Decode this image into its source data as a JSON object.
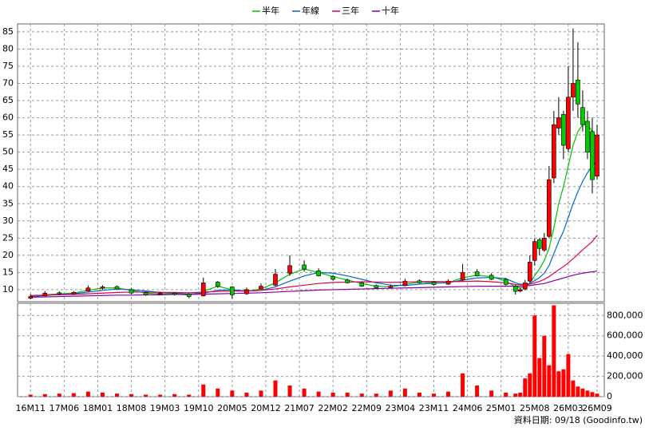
{
  "chart_data": {
    "type": "candlestick",
    "footer": "資料日期: 09/18 (Goodinfo.tw)",
    "x": [
      0,
      3,
      6,
      9,
      12,
      15,
      18,
      21,
      24,
      27,
      30,
      33,
      36,
      39,
      42,
      45,
      48,
      51,
      54,
      57,
      60,
      63,
      66,
      69,
      72,
      75,
      78,
      81,
      84,
      87,
      90,
      93,
      96,
      99,
      101,
      102,
      103,
      104,
      105,
      106,
      107,
      108,
      109,
      110,
      111,
      112,
      113,
      114,
      115,
      116,
      117,
      118
    ],
    "xlim": [
      -2.7,
      119.5
    ],
    "xticks": [
      {
        "value": 0,
        "label": "16M11"
      },
      {
        "value": 7,
        "label": "17M06"
      },
      {
        "value": 14,
        "label": "18M01"
      },
      {
        "value": 21,
        "label": "18M08"
      },
      {
        "value": 28,
        "label": "19M03"
      },
      {
        "value": 35,
        "label": "19M10"
      },
      {
        "value": 42,
        "label": "20M05"
      },
      {
        "value": 49,
        "label": "20M12"
      },
      {
        "value": 56,
        "label": "21M07"
      },
      {
        "value": 63,
        "label": "22M02"
      },
      {
        "value": 70,
        "label": "22M09"
      },
      {
        "value": 77,
        "label": "23M04"
      },
      {
        "value": 84,
        "label": "23M11"
      },
      {
        "value": 91,
        "label": "24M06"
      },
      {
        "value": 98,
        "label": "25M01"
      },
      {
        "value": 105,
        "label": "25M08"
      },
      {
        "value": 112,
        "label": "26M03"
      },
      {
        "value": 118,
        "label": "26M09"
      }
    ],
    "ylim": [
      6.5,
      87.3
    ],
    "yticks": [
      10,
      15,
      20,
      25,
      30,
      35,
      40,
      45,
      50,
      55,
      60,
      65,
      70,
      75,
      80,
      85
    ],
    "open": [
      7.5,
      8.2,
      9.1,
      8.7,
      9.6,
      10.4,
      10.9,
      10.0,
      9.1,
      8.6,
      9.0,
      8.7,
      8.2,
      12.2,
      10.8,
      8.8,
      10.2,
      11.3,
      14.8,
      17.2,
      15.5,
      13.8,
      12.8,
      12.0,
      11.2,
      10.6,
      11.2,
      12.6,
      12.2,
      11.6,
      12.8,
      15.2,
      14.2,
      13.0,
      11.0,
      9.6,
      10.2,
      12.5,
      18.5,
      24.5,
      21.5,
      25.5,
      42.5,
      57,
      61,
      51,
      66,
      71,
      63,
      59,
      56,
      43
    ],
    "high": [
      8.6,
      9.6,
      9.5,
      9.6,
      11.2,
      11.3,
      11.2,
      10.4,
      9.4,
      9.4,
      9.3,
      9.0,
      13.5,
      12.5,
      11.0,
      10.6,
      11.8,
      16.0,
      20.0,
      18.5,
      16.2,
      14.2,
      13.2,
      12.3,
      11.5,
      11.5,
      13.2,
      13.0,
      12.4,
      13.0,
      17.5,
      16.0,
      14.8,
      13.4,
      11.5,
      10.5,
      12.8,
      20.0,
      25.0,
      25.0,
      26.5,
      46.0,
      62.0,
      66.0,
      62.0,
      75.0,
      86.0,
      82.0,
      68.0,
      62.0,
      60.0,
      58.0
    ],
    "low": [
      7.2,
      8.0,
      8.5,
      8.5,
      9.4,
      10.0,
      9.9,
      8.7,
      8.2,
      8.4,
      8.3,
      7.5,
      8.0,
      10.5,
      7.4,
      8.5,
      10.0,
      11.0,
      14.0,
      15.2,
      13.8,
      12.6,
      11.8,
      10.8,
      10.3,
      10.4,
      11.0,
      11.8,
      11.2,
      11.4,
      12.5,
      13.8,
      12.8,
      11.2,
      8.6,
      9.2,
      9.8,
      12.0,
      17.0,
      20.0,
      21.0,
      25.0,
      41.0,
      55.0,
      48.0,
      50.0,
      62.0,
      60.0,
      56.0,
      48.0,
      38.0,
      42.0
    ],
    "close": [
      8.0,
      9.0,
      8.8,
      9.2,
      10.5,
      10.8,
      10.2,
      9.0,
      8.5,
      9.0,
      8.6,
      8.0,
      12.0,
      11.0,
      8.5,
      10.0,
      11.0,
      14.5,
      17.0,
      16.0,
      14.0,
      13.0,
      12.0,
      11.0,
      10.5,
      11.0,
      12.5,
      12.0,
      11.5,
      12.5,
      15.0,
      14.0,
      13.0,
      11.5,
      9.5,
      10,
      12,
      18,
      24,
      22,
      25,
      42,
      58,
      60,
      52,
      66,
      70,
      64,
      58,
      50,
      42,
      55
    ],
    "up_color": "#ff0000",
    "down_color": "#00cc00",
    "series": [
      {
        "name": "半年",
        "color": "#00c000",
        "values": [
          8.0,
          8.5,
          8.8,
          9.0,
          9.8,
          10.5,
          10.5,
          9.8,
          9.0,
          8.8,
          8.8,
          8.4,
          9.5,
          11.0,
          10.0,
          9.5,
          10.2,
          12.0,
          14.5,
          16.0,
          15.0,
          13.8,
          12.8,
          11.8,
          11.0,
          10.8,
          11.5,
          12.2,
          12.0,
          12.0,
          13.5,
          14.2,
          13.8,
          12.5,
          10.8,
          10.5,
          10.8,
          12.0,
          14.0,
          16.0,
          18.5,
          22.0,
          28.0,
          35.0,
          40.0,
          46.0,
          52.0,
          56.0,
          58.0,
          58.0,
          56.0,
          54.0
        ]
      },
      {
        "name": "年線",
        "color": "#0066cc",
        "values": [
          8.0,
          8.3,
          8.6,
          8.8,
          9.3,
          9.8,
          10.2,
          10.0,
          9.6,
          9.2,
          9.0,
          8.7,
          9.0,
          9.8,
          10.0,
          9.6,
          9.8,
          10.8,
          12.5,
          14.0,
          15.0,
          14.8,
          14.0,
          13.0,
          12.0,
          11.3,
          11.2,
          11.6,
          11.9,
          12.0,
          12.8,
          13.4,
          13.6,
          13.2,
          12.0,
          11.6,
          11.5,
          11.8,
          12.6,
          13.5,
          14.8,
          17.0,
          20.5,
          24.0,
          27.0,
          31.0,
          35.0,
          38.5,
          41.5,
          44.0,
          46.0,
          47.5
        ]
      },
      {
        "name": "三年",
        "color": "#dd0055",
        "values": [
          8.3,
          8.4,
          8.5,
          8.6,
          8.8,
          9.0,
          9.2,
          9.3,
          9.3,
          9.2,
          9.2,
          9.1,
          9.3,
          9.5,
          9.6,
          9.6,
          9.8,
          10.2,
          10.8,
          11.3,
          11.8,
          12.1,
          12.2,
          12.3,
          12.2,
          12.1,
          12.2,
          12.3,
          12.4,
          12.3,
          12.4,
          12.5,
          12.3,
          12.0,
          11.5,
          11.4,
          11.4,
          11.6,
          12.0,
          12.4,
          13.0,
          13.8,
          14.8,
          15.8,
          16.7,
          17.8,
          19.0,
          20.3,
          21.6,
          22.8,
          24.0,
          25.8
        ]
      },
      {
        "name": "十年",
        "color": "#8800aa",
        "values": [
          7.8,
          7.9,
          8.0,
          8.1,
          8.2,
          8.3,
          8.4,
          8.4,
          8.5,
          8.5,
          8.6,
          8.6,
          8.7,
          8.8,
          8.9,
          9.0,
          9.1,
          9.3,
          9.5,
          9.7,
          9.9,
          10.0,
          10.1,
          10.2,
          10.3,
          10.4,
          10.5,
          10.6,
          10.7,
          10.8,
          10.9,
          11.0,
          11.0,
          11.0,
          11.0,
          11.0,
          11.1,
          11.2,
          11.4,
          11.6,
          11.8,
          12.2,
          12.6,
          13.0,
          13.4,
          13.8,
          14.2,
          14.5,
          14.8,
          15.0,
          15.2,
          15.4
        ]
      }
    ],
    "volume": [
      20000,
      25000,
      30000,
      35000,
      50000,
      40000,
      30000,
      25000,
      20000,
      20000,
      25000,
      20000,
      120000,
      80000,
      60000,
      40000,
      60000,
      160000,
      110000,
      80000,
      50000,
      40000,
      40000,
      30000,
      30000,
      60000,
      80000,
      40000,
      30000,
      50000,
      230000,
      110000,
      60000,
      40000,
      30000,
      40000,
      180000,
      230000,
      800000,
      380000,
      600000,
      310000,
      900000,
      250000,
      270000,
      420000,
      160000,
      100000,
      80000,
      60000,
      45000,
      30000
    ],
    "volume_color": "#ff0000",
    "y2lim": [
      0,
      920000
    ],
    "y2ticks": [
      {
        "value": 0,
        "label": "0"
      },
      {
        "value": 200000,
        "label": "200,000"
      },
      {
        "value": 400000,
        "label": "400,000"
      },
      {
        "value": 600000,
        "label": "600,000"
      },
      {
        "value": 800000,
        "label": "800,000"
      }
    ],
    "grid": true
  }
}
